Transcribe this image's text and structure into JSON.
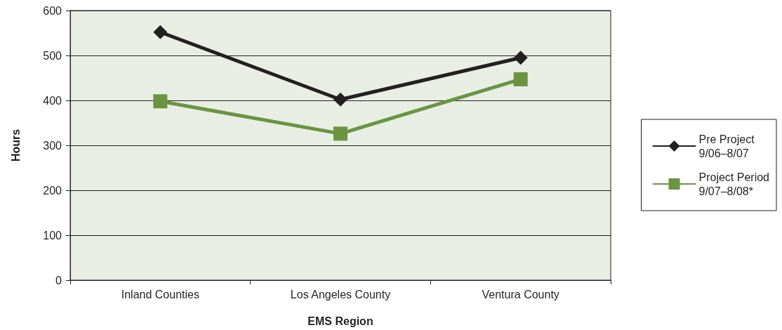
{
  "chart_data": {
    "type": "line",
    "xlabel": "EMS Region",
    "ylabel": "Hours",
    "categories": [
      "Inland Counties",
      "Los Angeles County",
      "Ventura County"
    ],
    "series": [
      {
        "name": "Pre Project\n9/06–8/07",
        "color": "#231f20",
        "marker": "diamond",
        "values": [
          552,
          402,
          495
        ]
      },
      {
        "name": "Project Period\n9/07–8/08*",
        "color": "#6a9441",
        "marker": "square",
        "values": [
          398,
          326,
          447
        ]
      }
    ],
    "ylim": [
      0,
      600
    ],
    "yticks": [
      0,
      100,
      200,
      300,
      400,
      500,
      600
    ],
    "grid": "y",
    "legend": "right",
    "line_style": "solid"
  }
}
